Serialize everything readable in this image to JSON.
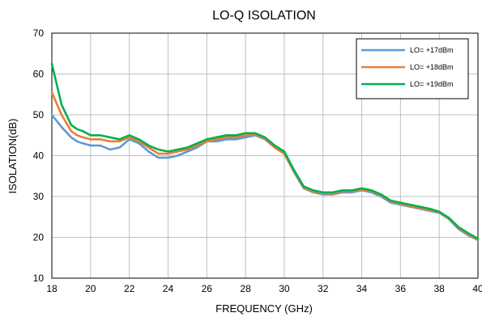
{
  "chart_data": {
    "type": "line",
    "title": "LO-Q ISOLATION",
    "xlabel": "FREQUENCY (GHz)",
    "ylabel": "ISOLATION(dB)",
    "xlim": [
      18,
      40
    ],
    "ylim": [
      10,
      70
    ],
    "xticks": [
      18,
      20,
      22,
      24,
      26,
      28,
      30,
      32,
      34,
      36,
      38,
      40
    ],
    "yticks": [
      10,
      20,
      30,
      40,
      50,
      60,
      70
    ],
    "grid": true,
    "legend_position": "top-right",
    "series": [
      {
        "name": "LO= +17dBm",
        "color": "#5b9bd5",
        "x": [
          18,
          18.5,
          19,
          19.3,
          19.6,
          20,
          20.5,
          21,
          21.5,
          22,
          22.5,
          23,
          23.5,
          24,
          24.5,
          25,
          25.5,
          26,
          26.5,
          27,
          27.5,
          28,
          28.5,
          29,
          29.5,
          30,
          30.5,
          31,
          31.5,
          32,
          32.5,
          33,
          33.5,
          34,
          34.5,
          35,
          35.5,
          36,
          36.5,
          37,
          37.5,
          38,
          38.5,
          39,
          39.5,
          40
        ],
        "values": [
          50,
          47,
          44.5,
          43.5,
          43,
          42.5,
          42.5,
          41.5,
          42,
          44,
          43,
          41,
          39.5,
          39.5,
          40,
          41,
          42,
          43.5,
          43.5,
          44,
          44,
          44.5,
          45,
          44,
          42,
          40.5,
          36,
          32,
          31,
          30.5,
          30.5,
          31,
          31,
          31.5,
          31,
          30,
          28.5,
          28,
          27.5,
          27,
          26.5,
          26,
          24.5,
          22,
          20.5,
          19.3
        ]
      },
      {
        "name": "LO= +18dBm",
        "color": "#ed7d31",
        "x": [
          18,
          18.5,
          19,
          19.3,
          19.6,
          20,
          20.5,
          21,
          21.5,
          22,
          22.5,
          23,
          23.5,
          24,
          24.5,
          25,
          25.5,
          26,
          26.5,
          27,
          27.5,
          28,
          28.5,
          29,
          29.5,
          30,
          30.5,
          31,
          31.5,
          32,
          32.5,
          33,
          33.5,
          34,
          34.5,
          35,
          35.5,
          36,
          36.5,
          37,
          37.5,
          38,
          38.5,
          39,
          39.5,
          40
        ],
        "values": [
          55.5,
          50,
          46,
          45,
          44.5,
          44,
          44,
          43.5,
          43.5,
          44.5,
          43.5,
          42,
          40.5,
          40.5,
          41,
          41.5,
          42.5,
          43.5,
          44,
          44.5,
          44.5,
          45,
          45.2,
          44.2,
          42,
          40.5,
          36.2,
          32.2,
          31.2,
          30.8,
          30.7,
          31.3,
          31.3,
          31.7,
          31.3,
          30.3,
          28.8,
          28.2,
          27.7,
          27.2,
          26.7,
          26.1,
          24.7,
          22.2,
          20.7,
          19.5
        ]
      },
      {
        "name": "LO= +19dBm",
        "color": "#00b050",
        "x": [
          18,
          18.5,
          19,
          19.3,
          19.6,
          20,
          20.5,
          21,
          21.5,
          22,
          22.5,
          23,
          23.5,
          24,
          24.5,
          25,
          25.5,
          26,
          26.5,
          27,
          27.5,
          28,
          28.5,
          29,
          29.5,
          30,
          30.5,
          31,
          31.5,
          32,
          32.5,
          33,
          33.5,
          34,
          34.5,
          35,
          35.5,
          36,
          36.5,
          37,
          37.5,
          38,
          38.5,
          39,
          39.5,
          40
        ],
        "values": [
          62.5,
          52.5,
          47.5,
          46.5,
          46,
          45,
          45,
          44.5,
          44,
          45,
          44,
          42.5,
          41.5,
          41,
          41.5,
          42,
          43,
          44,
          44.5,
          45,
          45,
          45.5,
          45.5,
          44.5,
          42.5,
          41,
          36.5,
          32.5,
          31.5,
          31,
          31,
          31.5,
          31.5,
          32,
          31.5,
          30.5,
          29,
          28.5,
          28,
          27.5,
          27,
          26.3,
          24.8,
          22.5,
          21,
          19.7
        ]
      }
    ]
  }
}
